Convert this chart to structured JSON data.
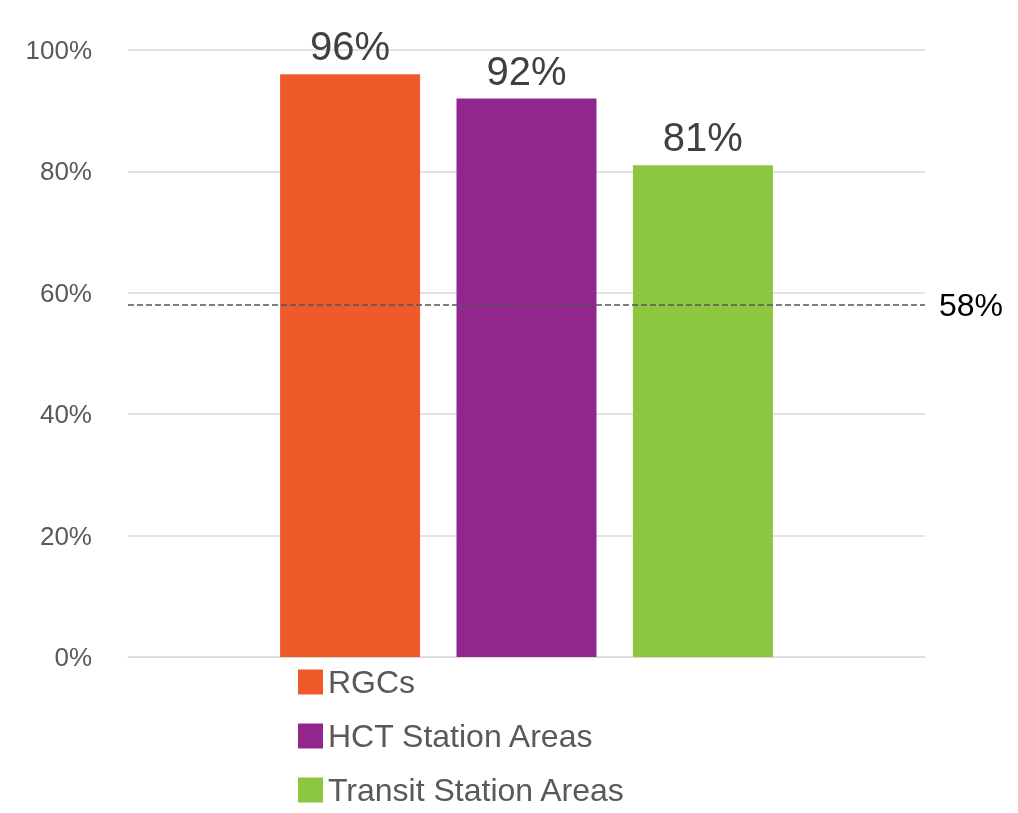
{
  "chart_data": {
    "type": "bar",
    "categories": [
      null
    ],
    "series": [
      {
        "name": "RGCs",
        "color": "#f05a2b",
        "values": [
          96
        ],
        "value_labels": [
          "96%"
        ]
      },
      {
        "name": "HCT Station Areas",
        "color": "#91278d",
        "values": [
          92
        ],
        "value_labels": [
          "92%"
        ]
      },
      {
        "name": "Transit Station Areas",
        "color": "#8dc63f",
        "values": [
          81
        ],
        "value_labels": [
          "81%"
        ]
      }
    ],
    "ylim": [
      0,
      100
    ],
    "yticks": [
      {
        "value": 0,
        "label": "0%"
      },
      {
        "value": 20,
        "label": "20%"
      },
      {
        "value": 40,
        "label": "40%"
      },
      {
        "value": 60,
        "label": "60%"
      },
      {
        "value": 80,
        "label": "80%"
      },
      {
        "value": 100,
        "label": "100%"
      }
    ],
    "grid": "y",
    "legend": "bottom",
    "ref_lines": [
      {
        "axis": "y",
        "value": 58,
        "label": "58%",
        "color": "#555555",
        "line_style": "dashed"
      }
    ]
  }
}
